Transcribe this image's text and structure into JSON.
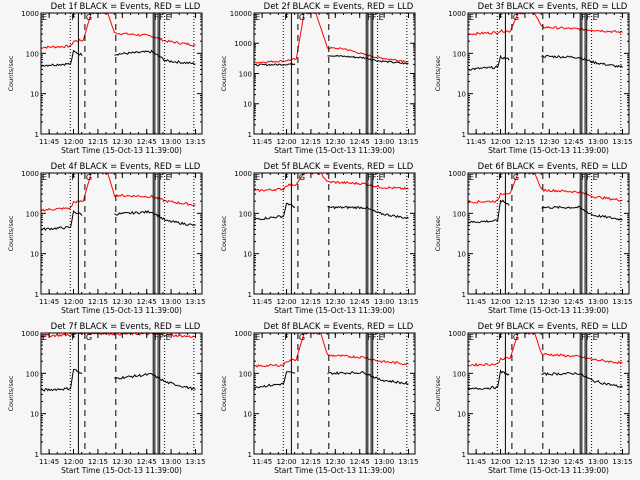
{
  "chart_data": {
    "type": "line",
    "x_range_minutes": [
      "11:40",
      "13:19"
    ],
    "x_ticks": [
      "11:45",
      "12:00",
      "12:15",
      "12:30",
      "12:45",
      "13:00",
      "13:15"
    ],
    "xlabel": "Start Time (15-Oct-13 11:39:00)",
    "ylabel": "Counts/sec",
    "yscale": "log",
    "series_colors": {
      "events": "#000000",
      "lld": "#ff0000"
    },
    "marker_lines": [
      {
        "time": "11:58",
        "style": "dotted",
        "label": "F"
      },
      {
        "time": "12:03",
        "style": "solid",
        "label": ""
      },
      {
        "time": "12:07",
        "style": "dashed",
        "label": "G"
      },
      {
        "time": "12:26",
        "style": "dashed",
        "label": ""
      },
      {
        "time": "12:49",
        "style": "solid",
        "label": "F"
      },
      {
        "time": "12:50",
        "style": "solid",
        "label": ""
      },
      {
        "time": "12:52",
        "style": "solid",
        "label": "F"
      },
      {
        "time": "12:53",
        "style": "solid",
        "label": ""
      },
      {
        "time": "12:56",
        "style": "dotted",
        "label": "E"
      },
      {
        "time": "13:14",
        "style": "dotted",
        "label": ""
      }
    ],
    "start_label": "E",
    "panels": [
      {
        "title": "Det 1f BLACK = Events, RED = LLD",
        "ylim": [
          1,
          1000
        ],
        "yticks": [
          "1",
          "10",
          "100",
          "1000"
        ],
        "events": [
          [
            11.65,
            50
          ],
          [
            11.97,
            55
          ],
          [
            12.0,
            110
          ],
          [
            12.1,
            90
          ],
          [
            12.42,
            95
          ],
          [
            12.8,
            110
          ],
          [
            12.95,
            65
          ],
          [
            13.25,
            55
          ]
        ],
        "lld": [
          [
            11.65,
            140
          ],
          [
            11.97,
            150
          ],
          [
            12.0,
            200
          ],
          [
            12.1,
            210
          ],
          [
            12.18,
            1000
          ],
          [
            12.35,
            1000
          ],
          [
            12.42,
            320
          ],
          [
            12.8,
            270
          ],
          [
            12.95,
            200
          ],
          [
            13.25,
            160
          ]
        ]
      },
      {
        "title": "Det 2f BLACK = Events, RED = LLD",
        "ylim": [
          1,
          10000
        ],
        "yticks": [
          "1",
          "10",
          "100",
          "1000",
          "10000"
        ],
        "events": [
          [
            11.65,
            190
          ],
          [
            11.97,
            200
          ],
          [
            12.1,
            210
          ],
          [
            12.42,
            400
          ],
          [
            12.8,
            330
          ],
          [
            12.95,
            260
          ],
          [
            13.25,
            210
          ]
        ],
        "lld": [
          [
            11.65,
            230
          ],
          [
            11.97,
            260
          ],
          [
            12.1,
            300
          ],
          [
            12.18,
            10000
          ],
          [
            12.3,
            10000
          ],
          [
            12.42,
            700
          ],
          [
            12.6,
            650
          ],
          [
            12.8,
            420
          ],
          [
            12.95,
            330
          ],
          [
            13.25,
            250
          ]
        ]
      },
      {
        "title": "Det 3f BLACK = Events, RED = LLD",
        "ylim": [
          1,
          1000
        ],
        "yticks": [
          "1",
          "10",
          "100",
          "1000"
        ],
        "events": [
          [
            11.65,
            40
          ],
          [
            11.97,
            45
          ],
          [
            12.0,
            80
          ],
          [
            12.1,
            70
          ],
          [
            12.42,
            85
          ],
          [
            12.8,
            80
          ],
          [
            12.95,
            60
          ],
          [
            13.25,
            45
          ]
        ],
        "lld": [
          [
            11.65,
            300
          ],
          [
            11.97,
            330
          ],
          [
            12.0,
            360
          ],
          [
            12.1,
            350
          ],
          [
            12.18,
            1000
          ],
          [
            12.35,
            1000
          ],
          [
            12.42,
            450
          ],
          [
            12.8,
            400
          ],
          [
            12.95,
            380
          ],
          [
            13.25,
            330
          ]
        ]
      },
      {
        "title": "Det 4f BLACK = Events, RED = LLD",
        "ylim": [
          1,
          1000
        ],
        "yticks": [
          "1",
          "10",
          "100",
          "1000"
        ],
        "events": [
          [
            11.65,
            40
          ],
          [
            11.97,
            45
          ],
          [
            12.0,
            110
          ],
          [
            12.1,
            90
          ],
          [
            12.42,
            95
          ],
          [
            12.8,
            110
          ],
          [
            12.95,
            65
          ],
          [
            13.25,
            50
          ]
        ],
        "lld": [
          [
            11.65,
            120
          ],
          [
            11.97,
            135
          ],
          [
            12.0,
            190
          ],
          [
            12.1,
            200
          ],
          [
            12.18,
            1000
          ],
          [
            12.35,
            1000
          ],
          [
            12.42,
            280
          ],
          [
            12.8,
            260
          ],
          [
            12.95,
            200
          ],
          [
            13.25,
            160
          ]
        ]
      },
      {
        "title": "Det 5f BLACK = Events, RED = LLD",
        "ylim": [
          1,
          1000
        ],
        "yticks": [
          "1",
          "10",
          "100",
          "1000"
        ],
        "events": [
          [
            11.65,
            70
          ],
          [
            11.97,
            85
          ],
          [
            12.0,
            180
          ],
          [
            12.1,
            140
          ],
          [
            12.42,
            140
          ],
          [
            12.8,
            140
          ],
          [
            12.95,
            100
          ],
          [
            13.25,
            75
          ]
        ],
        "lld": [
          [
            11.65,
            360
          ],
          [
            11.97,
            400
          ],
          [
            12.0,
            500
          ],
          [
            12.1,
            520
          ],
          [
            12.18,
            1000
          ],
          [
            12.35,
            1000
          ],
          [
            12.42,
            600
          ],
          [
            12.8,
            540
          ],
          [
            12.95,
            450
          ],
          [
            13.25,
            400
          ]
        ]
      },
      {
        "title": "Det 6f BLACK = Events, RED = LLD",
        "ylim": [
          1,
          1000
        ],
        "yticks": [
          "1",
          "10",
          "100",
          "1000"
        ],
        "events": [
          [
            11.65,
            60
          ],
          [
            11.97,
            65
          ],
          [
            12.0,
            210
          ],
          [
            12.1,
            160
          ],
          [
            12.42,
            140
          ],
          [
            12.8,
            140
          ],
          [
            12.95,
            90
          ],
          [
            13.25,
            70
          ]
        ],
        "lld": [
          [
            11.65,
            190
          ],
          [
            11.97,
            200
          ],
          [
            12.0,
            310
          ],
          [
            12.1,
            320
          ],
          [
            12.18,
            1000
          ],
          [
            12.35,
            1000
          ],
          [
            12.42,
            380
          ],
          [
            12.8,
            340
          ],
          [
            12.95,
            260
          ],
          [
            13.25,
            210
          ]
        ]
      },
      {
        "title": "Det 7f BLACK = Events, RED = LLD",
        "ylim": [
          1,
          1000
        ],
        "yticks": [
          "1",
          "10",
          "100",
          "1000"
        ],
        "events": [
          [
            11.65,
            38
          ],
          [
            11.97,
            42
          ],
          [
            12.0,
            130
          ],
          [
            12.1,
            90
          ],
          [
            12.42,
            75
          ],
          [
            12.8,
            95
          ],
          [
            12.95,
            60
          ],
          [
            13.25,
            40
          ]
        ],
        "lld": [
          [
            11.65,
            850
          ],
          [
            11.97,
            900
          ],
          [
            12.0,
            950
          ],
          [
            12.1,
            1000
          ],
          [
            12.42,
            950
          ],
          [
            12.8,
            950
          ],
          [
            12.95,
            900
          ],
          [
            13.25,
            800
          ]
        ]
      },
      {
        "title": "Det 8f BLACK = Events, RED = LLD",
        "ylim": [
          1,
          1000
        ],
        "yticks": [
          "1",
          "10",
          "100",
          "1000"
        ],
        "events": [
          [
            11.65,
            45
          ],
          [
            11.97,
            55
          ],
          [
            12.0,
            110
          ],
          [
            12.1,
            95
          ],
          [
            12.42,
            100
          ],
          [
            12.8,
            105
          ],
          [
            12.95,
            70
          ],
          [
            13.25,
            55
          ]
        ],
        "lld": [
          [
            11.65,
            150
          ],
          [
            11.97,
            160
          ],
          [
            12.0,
            200
          ],
          [
            12.1,
            220
          ],
          [
            12.18,
            1000
          ],
          [
            12.35,
            1000
          ],
          [
            12.42,
            280
          ],
          [
            12.8,
            250
          ],
          [
            12.95,
            200
          ],
          [
            13.25,
            170
          ]
        ]
      },
      {
        "title": "Det 9f BLACK = Events, RED = LLD",
        "ylim": [
          1,
          1000
        ],
        "yticks": [
          "1",
          "10",
          "100",
          "1000"
        ],
        "events": [
          [
            11.65,
            40
          ],
          [
            11.97,
            45
          ],
          [
            12.0,
            110
          ],
          [
            12.1,
            90
          ],
          [
            12.42,
            95
          ],
          [
            12.8,
            100
          ],
          [
            12.95,
            65
          ],
          [
            13.25,
            45
          ]
        ],
        "lld": [
          [
            11.65,
            160
          ],
          [
            11.97,
            170
          ],
          [
            12.0,
            230
          ],
          [
            12.1,
            240
          ],
          [
            12.18,
            1000
          ],
          [
            12.35,
            1000
          ],
          [
            12.42,
            300
          ],
          [
            12.8,
            260
          ],
          [
            12.95,
            220
          ],
          [
            13.25,
            180
          ]
        ]
      }
    ]
  }
}
